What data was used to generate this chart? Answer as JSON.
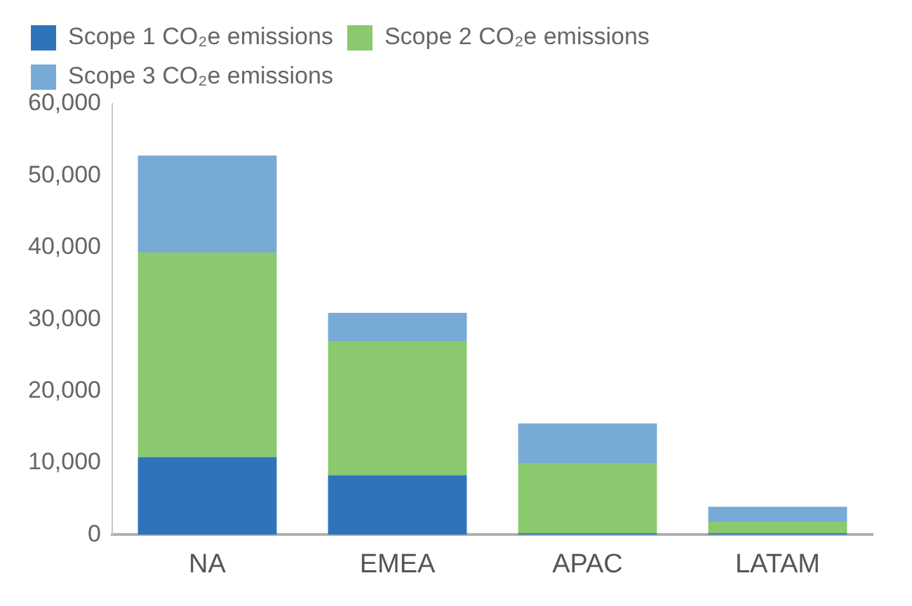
{
  "chart_data": {
    "type": "bar",
    "stacked": true,
    "categories": [
      "NA",
      "EMEA",
      "APAC",
      "LATAM"
    ],
    "series": [
      {
        "name": "Scope 1 CO₂e emissions",
        "color": "#2f74bb",
        "values": [
          10800,
          8300,
          200,
          200
        ]
      },
      {
        "name": "Scope 2 CO₂e emissions",
        "color": "#8ac96e",
        "values": [
          28500,
          18700,
          9800,
          1600
        ]
      },
      {
        "name": "Scope 3 CO₂e emissions",
        "color": "#78aad6",
        "values": [
          13500,
          3900,
          5500,
          2100
        ]
      }
    ],
    "ylim": [
      0,
      60000
    ],
    "yticks": [
      0,
      {
        "value": 10000,
        "label": "10,000"
      },
      {
        "value": 20000,
        "label": "20,000"
      },
      {
        "value": 30000,
        "label": "30,000"
      },
      {
        "value": 40000,
        "label": "40,000"
      },
      {
        "value": 50000,
        "label": "50,000"
      },
      {
        "value": 60000,
        "label": "60,000"
      }
    ],
    "grid": false,
    "legend": "top"
  }
}
